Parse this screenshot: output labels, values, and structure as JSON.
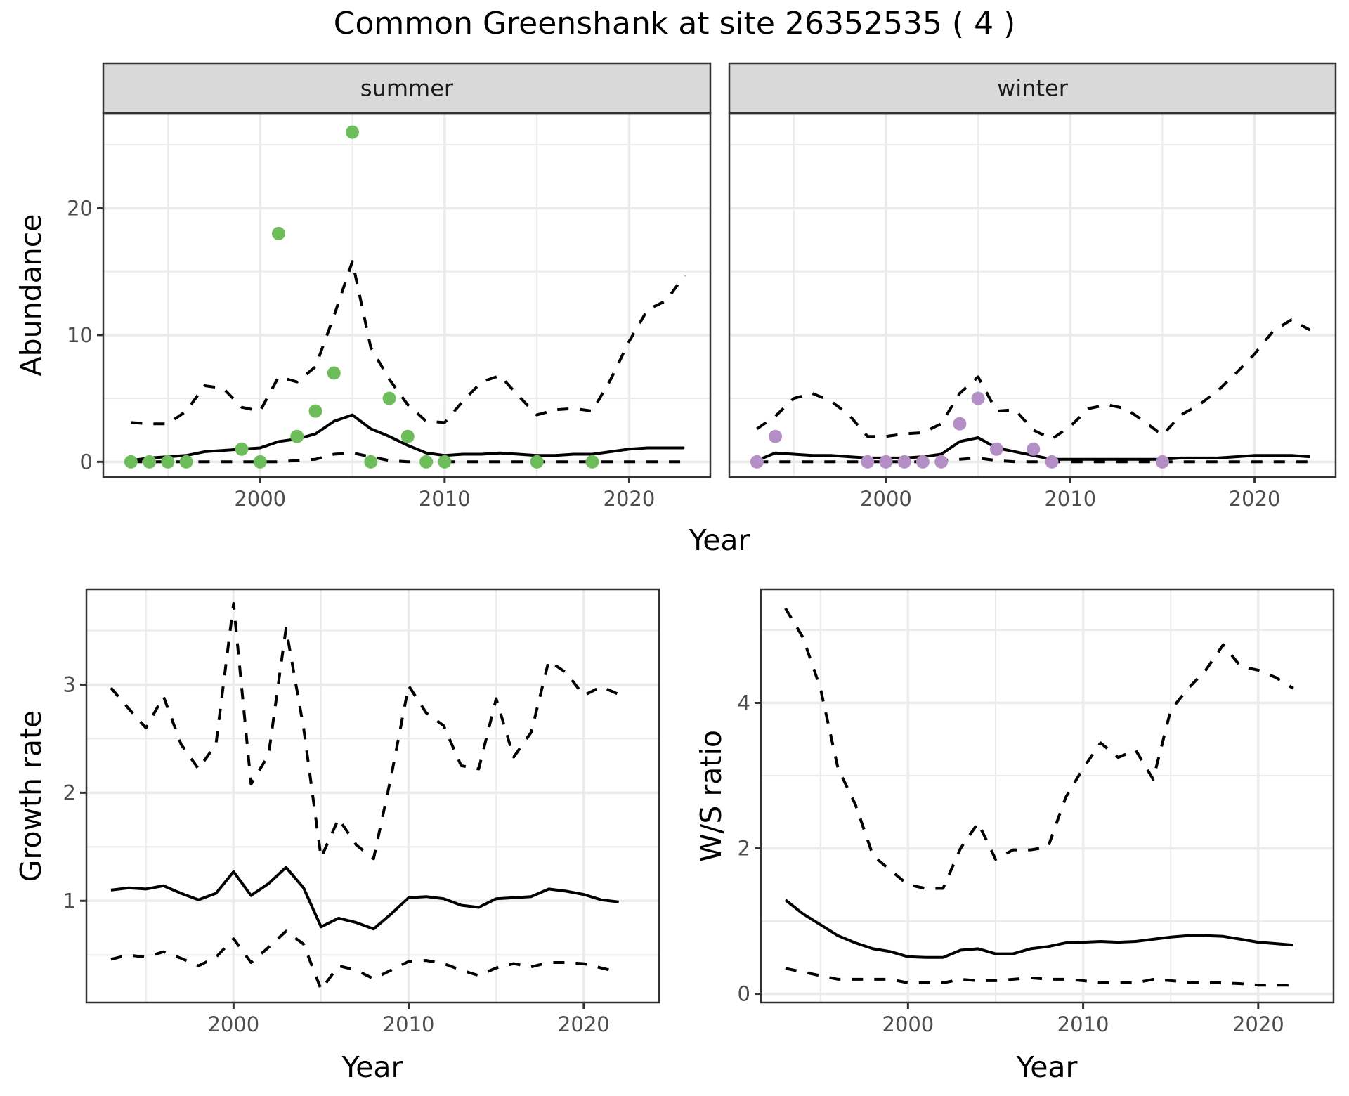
{
  "figure": {
    "title": "Common Greenshank at site 26352535 ( 4 )"
  },
  "colors": {
    "summer_points": "#6DBE5B",
    "winter_points": "#B48FC5",
    "line": "#000000",
    "strip_bg": "#D9D9D9",
    "grid": "#EBEBEB",
    "panel_border": "#333333"
  },
  "chart_data": [
    {
      "type": "line",
      "name": "abundance-summer",
      "facet": "summer",
      "xlabel": "Year",
      "ylabel": "Abundance",
      "xlim": [
        1991.5,
        2024.4
      ],
      "ylim": [
        -1.2,
        27.5
      ],
      "xticks": [
        2000,
        2010,
        2020
      ],
      "yticks": [
        0,
        10,
        20
      ],
      "grid": true,
      "x": [
        1993,
        1994,
        1995,
        1996,
        1997,
        1998,
        1999,
        2000,
        2001,
        2002,
        2003,
        2004,
        2005,
        2006,
        2007,
        2008,
        2009,
        2010,
        2011,
        2012,
        2013,
        2014,
        2015,
        2016,
        2017,
        2018,
        2019,
        2020,
        2021,
        2022,
        2023
      ],
      "series": [
        {
          "name": "mean",
          "style": "solid",
          "values": [
            0.1,
            0.3,
            0.4,
            0.5,
            0.8,
            0.9,
            1.0,
            1.1,
            1.6,
            1.8,
            2.2,
            3.2,
            3.7,
            2.6,
            2.0,
            1.3,
            0.7,
            0.5,
            0.6,
            0.6,
            0.7,
            0.6,
            0.5,
            0.5,
            0.6,
            0.6,
            0.8,
            1.0,
            1.1,
            1.1,
            1.1
          ]
        },
        {
          "name": "upper",
          "style": "dashed",
          "values": [
            3.1,
            3.0,
            3.0,
            4.0,
            6.0,
            5.8,
            4.3,
            4.0,
            6.7,
            6.3,
            7.5,
            11.5,
            15.8,
            9.0,
            6.5,
            4.5,
            3.2,
            3.1,
            4.8,
            6.3,
            6.8,
            5.2,
            3.7,
            4.1,
            4.2,
            4.0,
            6.5,
            9.5,
            12.0,
            12.7,
            14.7
          ]
        },
        {
          "name": "lower",
          "style": "dashed",
          "values": [
            0,
            0,
            0,
            0,
            0,
            0,
            0,
            0,
            0,
            0.1,
            0.2,
            0.6,
            0.7,
            0.4,
            0.1,
            0,
            0,
            0,
            0,
            0,
            0,
            0,
            0,
            0,
            0,
            0,
            0,
            0,
            0,
            0,
            0
          ]
        }
      ],
      "points": {
        "x": [
          1993,
          1994,
          1995,
          1996,
          1999,
          2000,
          2001,
          2002,
          2003,
          2004,
          2005,
          2006,
          2007,
          2008,
          2009,
          2010,
          2015,
          2018
        ],
        "y": [
          0,
          0,
          0,
          0,
          1,
          0,
          18,
          2,
          4,
          7,
          26,
          0,
          5,
          2,
          0,
          0,
          0,
          0
        ]
      }
    },
    {
      "type": "line",
      "name": "abundance-winter",
      "facet": "winter",
      "xlabel": "Year",
      "ylabel": "Abundance",
      "xlim": [
        1991.5,
        2024.4
      ],
      "ylim": [
        -1.2,
        27.5
      ],
      "xticks": [
        2000,
        2010,
        2020
      ],
      "yticks": [
        0,
        10,
        20
      ],
      "grid": true,
      "x": [
        1993,
        1994,
        1995,
        1996,
        1997,
        1998,
        1999,
        2000,
        2001,
        2002,
        2003,
        2004,
        2005,
        2006,
        2007,
        2008,
        2009,
        2010,
        2011,
        2012,
        2013,
        2014,
        2015,
        2016,
        2017,
        2018,
        2019,
        2020,
        2021,
        2022,
        2023
      ],
      "series": [
        {
          "name": "mean",
          "style": "solid",
          "values": [
            0.1,
            0.7,
            0.6,
            0.5,
            0.5,
            0.4,
            0.3,
            0.3,
            0.3,
            0.4,
            0.6,
            1.6,
            1.9,
            1.1,
            0.8,
            0.5,
            0.2,
            0.2,
            0.2,
            0.2,
            0.2,
            0.2,
            0.2,
            0.3,
            0.3,
            0.3,
            0.4,
            0.5,
            0.5,
            0.5,
            0.4
          ]
        },
        {
          "name": "upper",
          "style": "dashed",
          "values": [
            2.6,
            3.6,
            5.0,
            5.4,
            4.8,
            3.7,
            2.0,
            2.0,
            2.2,
            2.3,
            3.0,
            5.4,
            6.7,
            4.0,
            4.1,
            2.5,
            1.8,
            2.8,
            4.2,
            4.5,
            4.2,
            3.2,
            2.1,
            3.7,
            4.5,
            5.6,
            7.0,
            8.5,
            10.3,
            11.2,
            10.4
          ]
        },
        {
          "name": "lower",
          "style": "dashed",
          "values": [
            0,
            0,
            0,
            0,
            0,
            0,
            0,
            0,
            0,
            0,
            0.1,
            0.2,
            0.3,
            0.1,
            0,
            0,
            0,
            0,
            0,
            0,
            0,
            0,
            0,
            0,
            0,
            0,
            0,
            0,
            0,
            0,
            0
          ]
        }
      ],
      "points": {
        "x": [
          1993,
          1994,
          1999,
          2000,
          2001,
          2002,
          2003,
          2004,
          2005,
          2006,
          2008,
          2009,
          2015
        ],
        "y": [
          0,
          2,
          0,
          0,
          0,
          0,
          0,
          3,
          5,
          1,
          1,
          0,
          0
        ]
      }
    },
    {
      "type": "line",
      "name": "growth-rate",
      "xlabel": "Year",
      "ylabel": "Growth rate",
      "xlim": [
        1991.6,
        2024.3
      ],
      "ylim": [
        0.06,
        3.88
      ],
      "xticks": [
        2000,
        2010,
        2020
      ],
      "yticks": [
        1,
        2,
        3
      ],
      "grid": true,
      "x": [
        1993,
        1994,
        1995,
        1996,
        1997,
        1998,
        1999,
        2000,
        2001,
        2002,
        2003,
        2004,
        2005,
        2006,
        2007,
        2008,
        2009,
        2010,
        2011,
        2012,
        2013,
        2014,
        2015,
        2016,
        2017,
        2018,
        2019,
        2020,
        2021,
        2022
      ],
      "series": [
        {
          "name": "mean",
          "style": "solid",
          "values": [
            1.1,
            1.12,
            1.11,
            1.14,
            1.07,
            1.01,
            1.07,
            1.27,
            1.05,
            1.16,
            1.31,
            1.12,
            0.76,
            0.84,
            0.8,
            0.74,
            0.88,
            1.03,
            1.04,
            1.02,
            0.96,
            0.94,
            1.02,
            1.03,
            1.04,
            1.11,
            1.09,
            1.06,
            1.01,
            0.99
          ]
        },
        {
          "name": "upper",
          "style": "dashed",
          "values": [
            2.97,
            2.78,
            2.6,
            2.89,
            2.45,
            2.22,
            2.45,
            3.75,
            2.08,
            2.35,
            3.52,
            2.6,
            1.4,
            1.76,
            1.52,
            1.39,
            2.15,
            2.99,
            2.74,
            2.62,
            2.25,
            2.22,
            2.87,
            2.33,
            2.56,
            3.22,
            3.11,
            2.9,
            2.98,
            2.91
          ]
        },
        {
          "name": "lower",
          "style": "dashed",
          "values": [
            0.46,
            0.5,
            0.48,
            0.53,
            0.47,
            0.4,
            0.48,
            0.65,
            0.43,
            0.57,
            0.72,
            0.6,
            0.18,
            0.4,
            0.36,
            0.28,
            0.36,
            0.44,
            0.45,
            0.42,
            0.36,
            0.31,
            0.38,
            0.42,
            0.39,
            0.43,
            0.43,
            0.42,
            0.38,
            0.34
          ]
        }
      ]
    },
    {
      "type": "line",
      "name": "ws-ratio",
      "xlabel": "Year",
      "ylabel": "W/S ratio",
      "xlim": [
        1991.6,
        2024.3
      ],
      "ylim": [
        -0.12,
        5.56
      ],
      "xticks": [
        2000,
        2010,
        2020
      ],
      "yticks": [
        0,
        2,
        4
      ],
      "grid": true,
      "x": [
        1993,
        1994,
        1995,
        1996,
        1997,
        1998,
        1999,
        2000,
        2001,
        2002,
        2003,
        2004,
        2005,
        2006,
        2007,
        2008,
        2009,
        2010,
        2011,
        2012,
        2013,
        2014,
        2015,
        2016,
        2017,
        2018,
        2019,
        2020,
        2021,
        2022
      ],
      "series": [
        {
          "name": "mean",
          "style": "solid",
          "values": [
            1.29,
            1.1,
            0.95,
            0.8,
            0.7,
            0.62,
            0.58,
            0.51,
            0.5,
            0.5,
            0.6,
            0.62,
            0.55,
            0.55,
            0.62,
            0.65,
            0.7,
            0.71,
            0.72,
            0.71,
            0.72,
            0.75,
            0.78,
            0.8,
            0.8,
            0.79,
            0.75,
            0.71,
            0.69,
            0.67
          ]
        },
        {
          "name": "upper",
          "style": "dashed",
          "values": [
            5.3,
            4.9,
            4.2,
            3.1,
            2.6,
            1.9,
            1.7,
            1.5,
            1.45,
            1.45,
            2.0,
            2.35,
            1.85,
            1.98,
            1.98,
            2.02,
            2.7,
            3.1,
            3.45,
            3.25,
            3.35,
            2.95,
            3.9,
            4.2,
            4.45,
            4.8,
            4.5,
            4.45,
            4.35,
            4.2
          ]
        },
        {
          "name": "lower",
          "style": "dashed",
          "values": [
            0.35,
            0.3,
            0.25,
            0.2,
            0.2,
            0.2,
            0.2,
            0.15,
            0.15,
            0.15,
            0.2,
            0.18,
            0.18,
            0.2,
            0.22,
            0.2,
            0.2,
            0.18,
            0.15,
            0.15,
            0.15,
            0.2,
            0.18,
            0.16,
            0.15,
            0.15,
            0.14,
            0.12,
            0.12,
            0.12
          ]
        }
      ]
    }
  ]
}
